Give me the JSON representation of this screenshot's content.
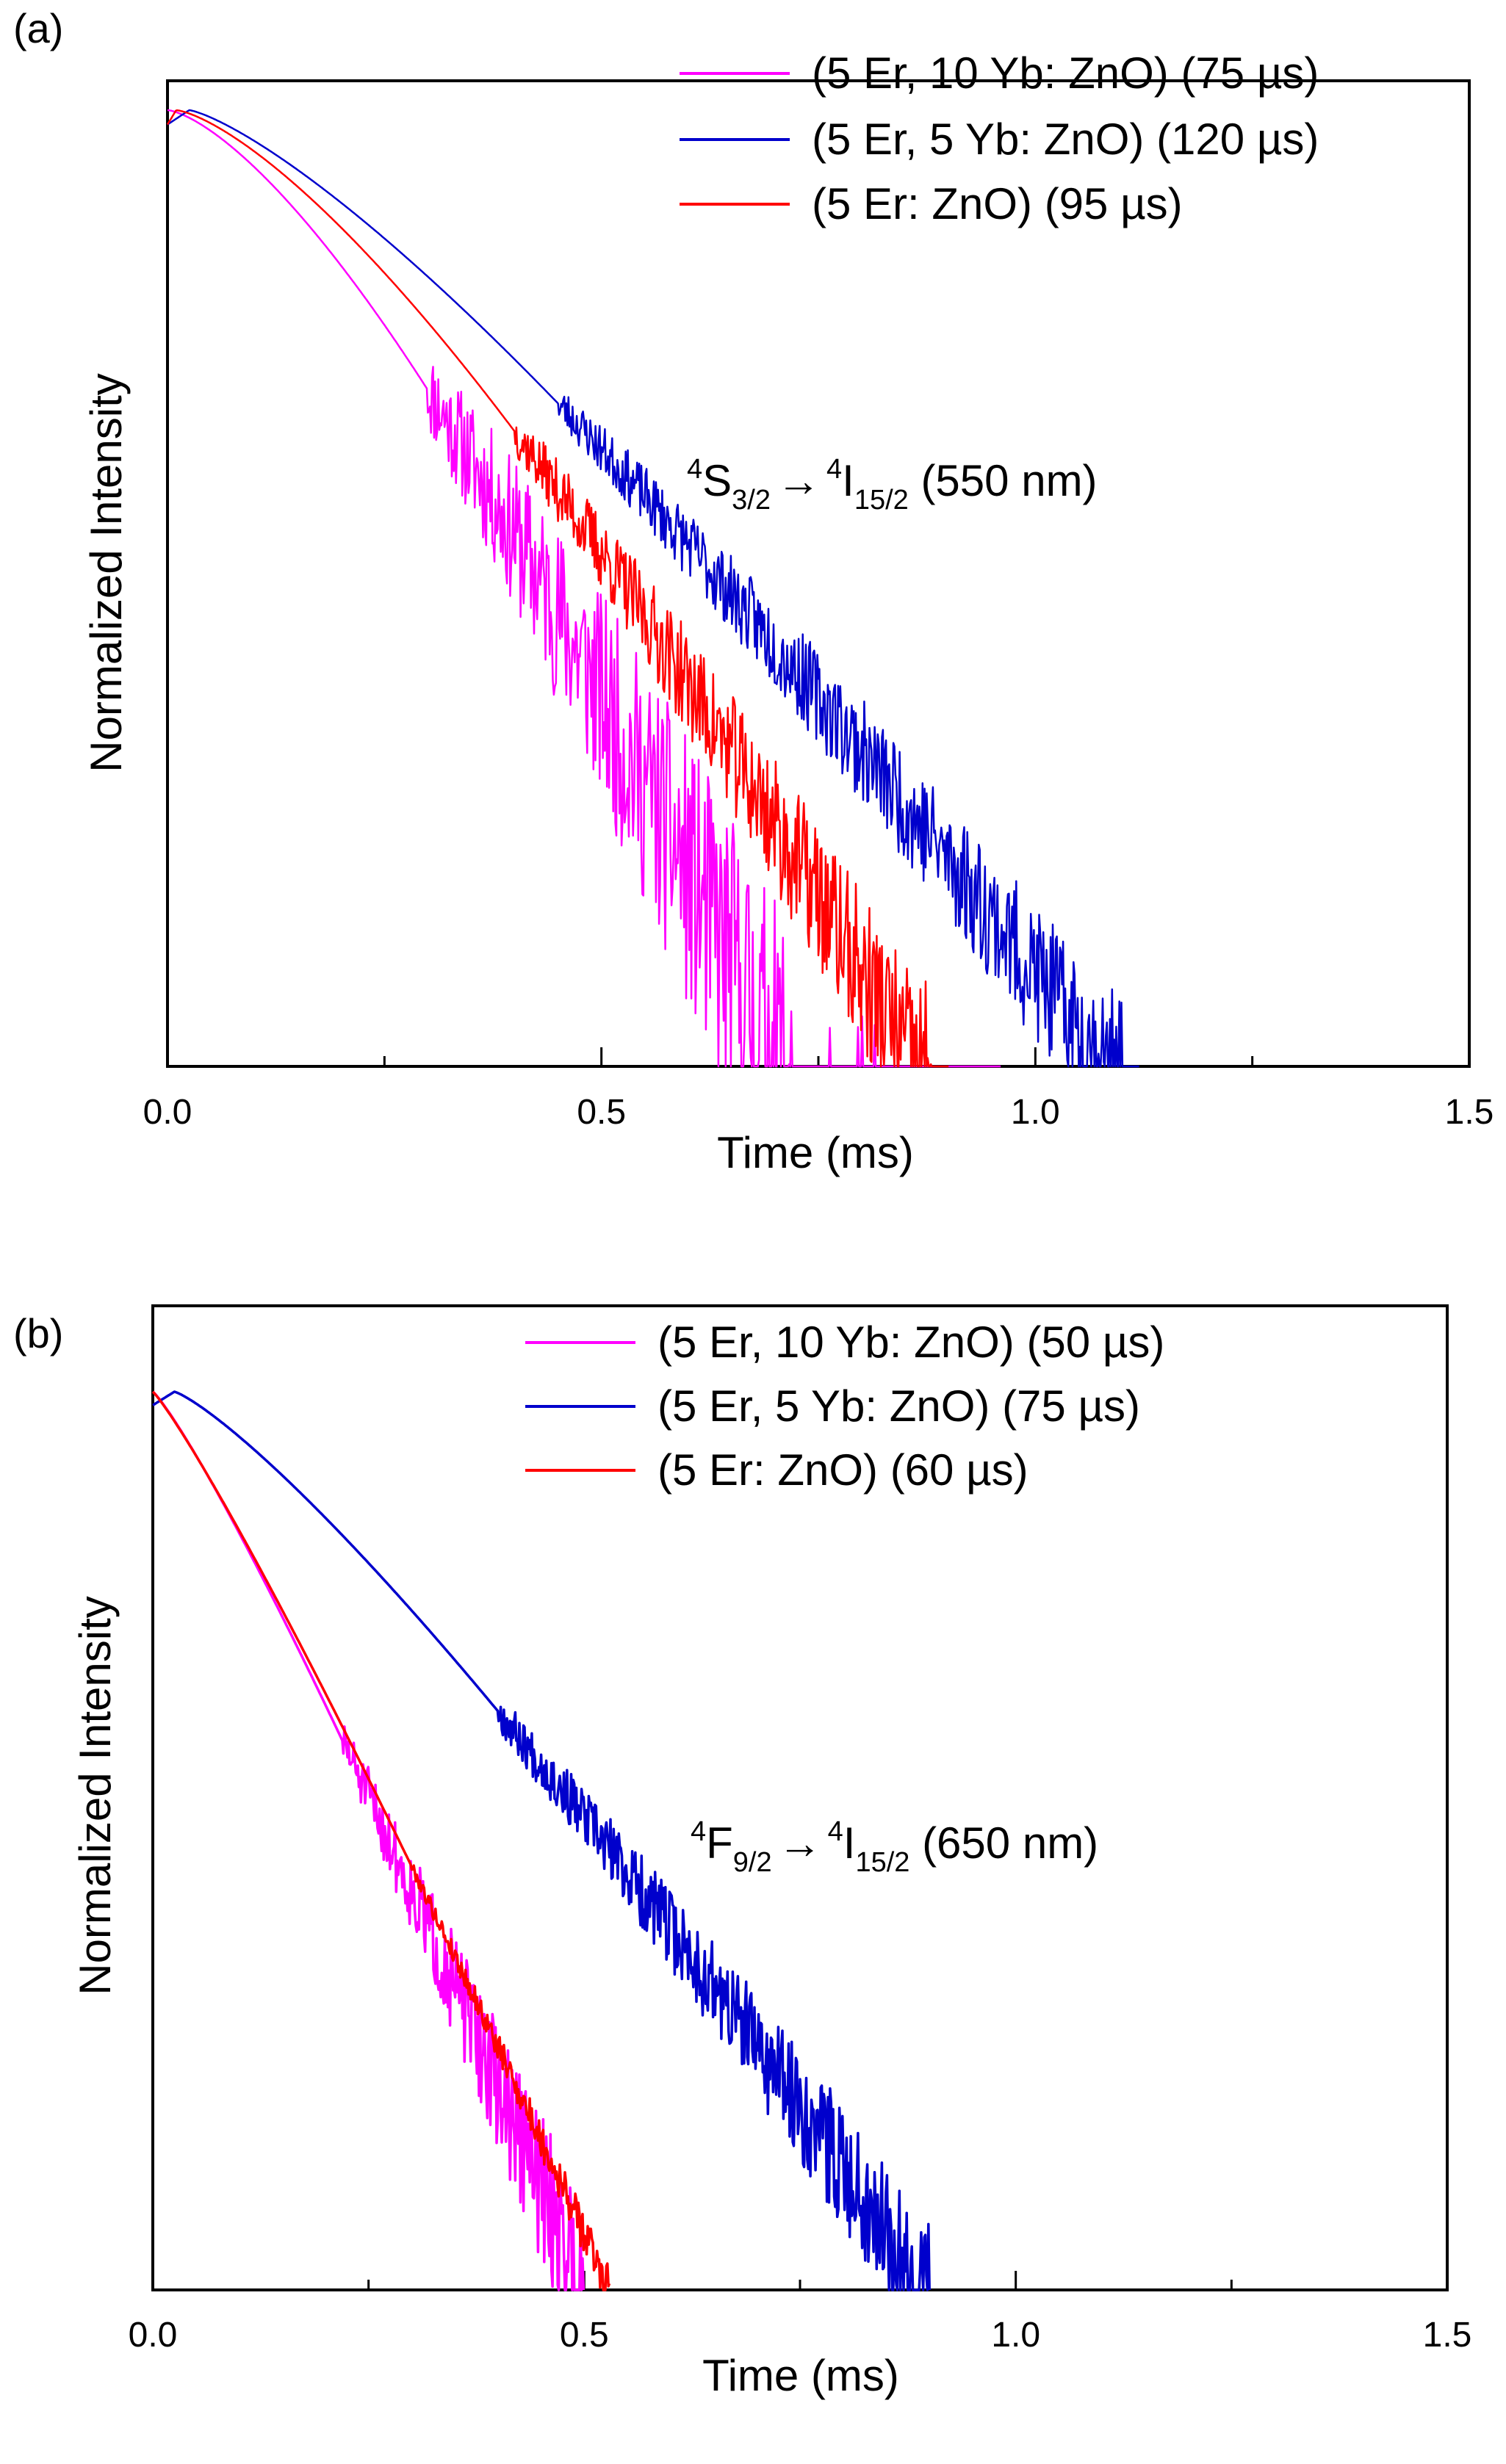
{
  "chart_data": [
    {
      "type": "line",
      "panel_label": "(a)",
      "xlabel": "Time (ms)",
      "ylabel": "Normalized Intensity",
      "xlim": [
        0,
        1.5
      ],
      "ylim": [
        0,
        1
      ],
      "x_ticks": [
        "0.0",
        "0.5",
        "1.0",
        "1.5"
      ],
      "y_ticks_shown": false,
      "legend_position": "top-right",
      "annotation": {
        "base": "S",
        "pre_sup": "4",
        "sub": "3/2",
        "arrow": "→",
        "target_sup": "4",
        "target_base": "I",
        "target_sub": "15/2",
        "suffix": " (550 nm)"
      },
      "series": [
        {
          "name": "(5 Er, 10 Yb: ZnO) (75 µs)",
          "color": "#ff00ff",
          "peak_x": 0.0,
          "decay_end_x": 0.7,
          "curvature": 1.45,
          "noise_start_x": 0.3,
          "noise_amp": 0.13,
          "tail_end_x": 0.96,
          "seed": 11
        },
        {
          "name": "(5 Er, 5 Yb: ZnO) (120 µs)",
          "color": "#0000cc",
          "peak_x": 0.025,
          "decay_end_x": 1.08,
          "curvature": 1.3,
          "noise_start_x": 0.45,
          "noise_amp": 0.06,
          "tail_end_x": 1.12,
          "seed": 23
        },
        {
          "name": "(5 Er: ZnO) (95 µs)",
          "color": "#ff0000",
          "peak_x": 0.01,
          "decay_end_x": 0.86,
          "curvature": 1.4,
          "noise_start_x": 0.4,
          "noise_amp": 0.07,
          "tail_end_x": 0.9,
          "seed": 37
        }
      ]
    },
    {
      "type": "line",
      "panel_label": "(b)",
      "xlabel": "Time (ms)",
      "ylabel": "Normalized Intensity",
      "xlim": [
        0,
        1.5
      ],
      "ylim": [
        0,
        1
      ],
      "x_ticks": [
        "0.0",
        "0.5",
        "1.0",
        "1.5"
      ],
      "y_ticks_shown": false,
      "legend_position": "top-right",
      "annotation": {
        "base": "F",
        "pre_sup": "4",
        "sub": "9/2",
        "arrow": "→",
        "target_sup": "4",
        "target_base": "I",
        "target_sub": "15/2",
        "suffix": " (650 nm)"
      },
      "series": [
        {
          "name": "(5 Er, 10 Yb: ZnO) (50 µs)",
          "color": "#ff00ff",
          "peak_x": 0.0,
          "decay_end_x": 0.5,
          "curvature": 1.15,
          "noise_start_x": 0.22,
          "noise_amp": 0.07,
          "tail_end_x": 0.5,
          "seed": 51
        },
        {
          "name": "(5 Er, 5 Yb: ZnO) (75 µs)",
          "color": "#0000cc",
          "peak_x": 0.025,
          "decay_end_x": 0.9,
          "curvature": 1.22,
          "noise_start_x": 0.4,
          "noise_amp": 0.06,
          "tail_end_x": 0.9,
          "seed": 67
        },
        {
          "name": "(5 Er: ZnO) (60 µs)",
          "color": "#ff0000",
          "peak_x": 0.0,
          "decay_end_x": 0.53,
          "curvature": 1.12,
          "noise_start_x": 0.3,
          "noise_amp": 0.02,
          "tail_end_x": 0.53,
          "seed": 79
        }
      ]
    }
  ]
}
